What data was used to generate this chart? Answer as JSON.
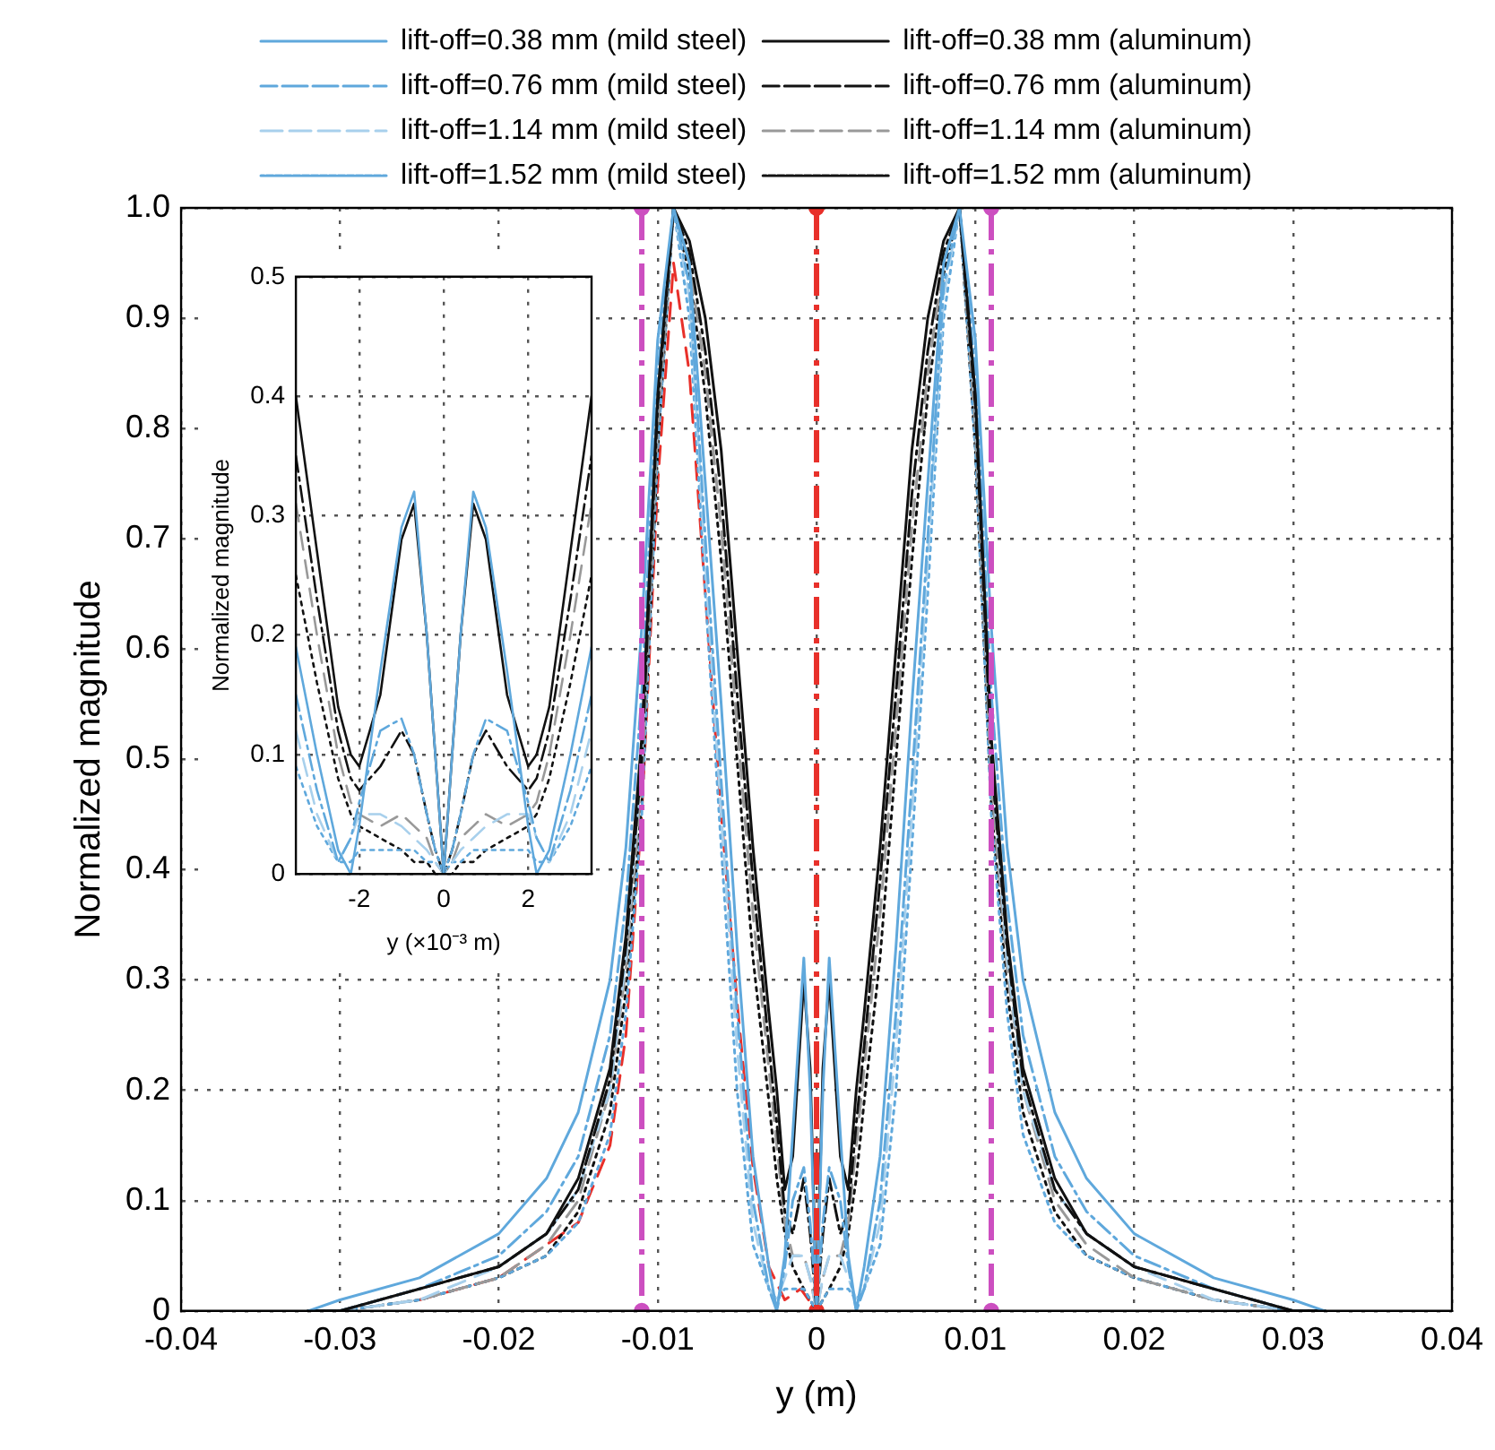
{
  "chart_data": [
    {
      "type": "line",
      "xlabel": "y (m)",
      "ylabel": "Normalized magnitude",
      "legend": "top",
      "grid": true,
      "marker": "none",
      "xlim": [
        -0.04,
        0.04
      ],
      "xticks": [
        -0.04,
        -0.03,
        -0.02,
        -0.01,
        0,
        0.01,
        0.02,
        0.03,
        0.04
      ],
      "ylim": [
        0,
        1
      ],
      "yticks": [
        0,
        0.1,
        0.2,
        0.3,
        0.4,
        0.5,
        0.6,
        0.7,
        0.8,
        0.9,
        {
          "value": 1,
          "label": "1.0"
        }
      ],
      "x": [
        -0.032,
        -0.03,
        -0.025,
        -0.02,
        -0.017,
        -0.015,
        -0.013,
        -0.012,
        -0.011,
        -0.01,
        -0.009,
        -0.008,
        -0.007,
        -0.006,
        -0.005,
        -0.004,
        -0.003,
        -0.0025,
        -0.002,
        -0.0015,
        -0.0008,
        -0.0004,
        0,
        0.0004,
        0.0008,
        0.0015,
        0.002,
        0.0025,
        0.003,
        0.004,
        0.005,
        0.006,
        0.007,
        0.008,
        0.009,
        0.01,
        0.011,
        0.012,
        0.013,
        0.015,
        0.017,
        0.02,
        0.025,
        0.03,
        0.032
      ],
      "series": [
        {
          "name": "lift-off=0.38 mm (mild steel)",
          "color": "#5fa8dc",
          "line_style": "solid",
          "values": [
            0,
            0.01,
            0.03,
            0.07,
            0.12,
            0.18,
            0.3,
            0.42,
            0.62,
            0.88,
            1,
            0.95,
            0.75,
            0.55,
            0.33,
            0.14,
            0.04,
            0,
            0.05,
            0.16,
            0.32,
            0.2,
            0,
            0.2,
            0.32,
            0.16,
            0.05,
            0,
            0.04,
            0.14,
            0.33,
            0.55,
            0.75,
            0.95,
            1,
            0.88,
            0.62,
            0.42,
            0.3,
            0.18,
            0.12,
            0.07,
            0.03,
            0.01,
            0
          ]
        },
        {
          "name": "lift-off=0.38 mm (aluminum)",
          "color": "#111111",
          "line_style": "solid",
          "values": [
            0,
            0,
            0.02,
            0.04,
            0.07,
            0.12,
            0.22,
            0.34,
            0.52,
            0.83,
            1,
            0.97,
            0.9,
            0.78,
            0.6,
            0.42,
            0.27,
            0.2,
            0.11,
            0.14,
            0.3,
            0.22,
            0,
            0.22,
            0.3,
            0.14,
            0.11,
            0.2,
            0.27,
            0.42,
            0.6,
            0.78,
            0.9,
            0.97,
            1,
            0.83,
            0.52,
            0.34,
            0.22,
            0.12,
            0.07,
            0.04,
            0.02,
            0,
            0
          ]
        },
        {
          "name": "lift-off=0.76 mm (mild steel)",
          "color": "#5fa8dc",
          "line_style": "dashdot",
          "values": [
            0,
            0,
            0.02,
            0.05,
            0.09,
            0.14,
            0.25,
            0.37,
            0.56,
            0.85,
            1,
            0.93,
            0.7,
            0.48,
            0.27,
            0.1,
            0.02,
            0,
            0.04,
            0.1,
            0.13,
            0.08,
            0,
            0.08,
            0.13,
            0.1,
            0.04,
            0,
            0.02,
            0.1,
            0.27,
            0.48,
            0.7,
            0.93,
            1,
            0.85,
            0.56,
            0.37,
            0.25,
            0.14,
            0.09,
            0.05,
            0.02,
            0,
            0
          ]
        },
        {
          "name": "lift-off=0.76 mm (aluminum)",
          "color": "#111111",
          "line_style": "dashdot",
          "values": [
            0,
            0,
            0.02,
            0.04,
            0.07,
            0.11,
            0.21,
            0.33,
            0.5,
            0.82,
            1,
            0.96,
            0.87,
            0.74,
            0.56,
            0.39,
            0.24,
            0.17,
            0.09,
            0.07,
            0.12,
            0.07,
            0,
            0.07,
            0.12,
            0.07,
            0.09,
            0.17,
            0.24,
            0.39,
            0.56,
            0.74,
            0.87,
            0.96,
            1,
            0.82,
            0.5,
            0.33,
            0.21,
            0.11,
            0.07,
            0.04,
            0.02,
            0,
            0
          ]
        },
        {
          "name": "lift-off=1.14 mm (mild steel)",
          "color": "#a8d0ec",
          "line_style": "dashed",
          "values": [
            0,
            0,
            0.01,
            0.04,
            0.07,
            0.11,
            0.2,
            0.32,
            0.5,
            0.82,
            1,
            0.92,
            0.68,
            0.45,
            0.24,
            0.08,
            0.02,
            0.01,
            0.03,
            0.05,
            0.05,
            0.03,
            0,
            0.03,
            0.05,
            0.05,
            0.03,
            0.01,
            0.02,
            0.08,
            0.24,
            0.45,
            0.68,
            0.92,
            1,
            0.82,
            0.5,
            0.32,
            0.2,
            0.11,
            0.07,
            0.04,
            0.01,
            0,
            0
          ]
        },
        {
          "name": "lift-off=1.14 mm (aluminum)",
          "color": "#999999",
          "line_style": "dashed",
          "values": [
            0,
            0,
            0.01,
            0.03,
            0.06,
            0.1,
            0.2,
            0.31,
            0.48,
            0.8,
            1,
            0.95,
            0.85,
            0.71,
            0.53,
            0.36,
            0.22,
            0.15,
            0.08,
            0.05,
            0.05,
            0.03,
            0,
            0.03,
            0.05,
            0.05,
            0.08,
            0.15,
            0.22,
            0.36,
            0.53,
            0.71,
            0.85,
            0.95,
            1,
            0.8,
            0.48,
            0.31,
            0.2,
            0.1,
            0.06,
            0.03,
            0.01,
            0,
            0
          ]
        },
        {
          "name": "lift-off=1.52 mm (mild steel)",
          "color": "#5fa8dc",
          "line_style": "dotted",
          "values": [
            0,
            0,
            0.01,
            0.03,
            0.05,
            0.08,
            0.16,
            0.27,
            0.45,
            0.78,
            1,
            0.9,
            0.65,
            0.42,
            0.2,
            0.06,
            0.02,
            0.01,
            0.02,
            0.02,
            0.02,
            0.01,
            0,
            0.01,
            0.02,
            0.02,
            0.02,
            0.01,
            0.02,
            0.06,
            0.2,
            0.42,
            0.65,
            0.9,
            1,
            0.78,
            0.45,
            0.27,
            0.16,
            0.08,
            0.05,
            0.03,
            0.01,
            0,
            0
          ]
        },
        {
          "name": "lift-off=1.52 mm (aluminum)",
          "color": "#111111",
          "line_style": "dotted",
          "values": [
            0,
            0,
            0.01,
            0.03,
            0.05,
            0.09,
            0.18,
            0.29,
            0.46,
            0.78,
            1,
            0.94,
            0.83,
            0.68,
            0.5,
            0.32,
            0.19,
            0.12,
            0.07,
            0.04,
            0.02,
            0.01,
            0,
            0.01,
            0.02,
            0.04,
            0.07,
            0.12,
            0.19,
            0.32,
            0.5,
            0.68,
            0.83,
            0.94,
            1,
            0.78,
            0.46,
            0.29,
            0.18,
            0.09,
            0.05,
            0.03,
            0.01,
            0,
            0
          ]
        },
        {
          "color": "#e8302a",
          "line_style": "dashed",
          "x": [
            -0.025,
            -0.02,
            -0.015,
            -0.013,
            -0.012,
            -0.011,
            -0.01,
            -0.009,
            -0.008,
            -0.007,
            -0.006,
            -0.005,
            -0.004,
            -0.003,
            -0.002,
            -0.001,
            0
          ],
          "values": [
            0.01,
            0.03,
            0.08,
            0.15,
            0.25,
            0.45,
            0.75,
            0.95,
            0.85,
            0.65,
            0.45,
            0.28,
            0.13,
            0.04,
            0.01,
            0.02,
            0
          ]
        },
        {
          "type": "scatter",
          "marker": "circle",
          "color": "#cc4fc0",
          "x": [
            -0.011,
            -0.011,
            0.011,
            0.011
          ],
          "values": [
            0,
            1,
            0,
            1
          ]
        },
        {
          "type": "scatter",
          "marker": "circle",
          "color": "#e8302a",
          "x": [
            0,
            0
          ],
          "values": [
            0,
            1
          ]
        }
      ],
      "ref_lines": [
        {
          "axis": "x",
          "value": -0.011,
          "color": "#cc4fc0",
          "line_style": "dashed"
        },
        {
          "axis": "x",
          "value": 0,
          "color": "#e8302a",
          "line_style": "dashed"
        },
        {
          "axis": "x",
          "value": 0.011,
          "color": "#cc4fc0",
          "line_style": "dashed"
        }
      ]
    },
    {
      "type": "line",
      "xlabel": "y (×10⁻³ m)",
      "ylabel": "Normalized magnitude",
      "grid": true,
      "marker": "none",
      "xlim": [
        -3.5,
        3.5
      ],
      "xticks": [
        -2,
        0,
        2
      ],
      "ylim": [
        0,
        0.5
      ],
      "yticks": [
        0,
        0.1,
        0.2,
        0.3,
        0.4,
        0.5
      ],
      "x": [
        -3.5,
        -3,
        -2.5,
        -2.2,
        -2,
        -1.5,
        -1,
        -0.7,
        -0.4,
        -0.2,
        0,
        0.2,
        0.4,
        0.7,
        1,
        1.5,
        2,
        2.2,
        2.5,
        3,
        3.5
      ],
      "series": [
        {
          "color": "#5fa8dc",
          "line_style": "solid",
          "values": [
            0.19,
            0.1,
            0.02,
            0,
            0.04,
            0.17,
            0.29,
            0.32,
            0.2,
            0.1,
            0,
            0.1,
            0.2,
            0.32,
            0.29,
            0.17,
            0.04,
            0,
            0.02,
            0.1,
            0.19
          ]
        },
        {
          "color": "#111111",
          "line_style": "solid",
          "values": [
            0.4,
            0.27,
            0.14,
            0.1,
            0.09,
            0.15,
            0.28,
            0.31,
            0.2,
            0.1,
            0,
            0.1,
            0.2,
            0.31,
            0.28,
            0.15,
            0.09,
            0.1,
            0.14,
            0.27,
            0.4
          ]
        },
        {
          "color": "#5fa8dc",
          "line_style": "dashdot",
          "values": [
            0.15,
            0.07,
            0.01,
            0.03,
            0.06,
            0.12,
            0.13,
            0.1,
            0.05,
            0.02,
            0,
            0.02,
            0.05,
            0.1,
            0.13,
            0.12,
            0.06,
            0.03,
            0.01,
            0.07,
            0.15
          ]
        },
        {
          "color": "#111111",
          "line_style": "dashdot",
          "values": [
            0.35,
            0.23,
            0.12,
            0.08,
            0.07,
            0.09,
            0.12,
            0.1,
            0.05,
            0.02,
            0,
            0.02,
            0.05,
            0.1,
            0.12,
            0.09,
            0.07,
            0.08,
            0.12,
            0.23,
            0.35
          ]
        },
        {
          "color": "#a8d0ec",
          "line_style": "dashed",
          "values": [
            0.12,
            0.05,
            0.01,
            0.03,
            0.05,
            0.05,
            0.04,
            0.03,
            0.02,
            0.01,
            0,
            0.01,
            0.02,
            0.03,
            0.04,
            0.05,
            0.05,
            0.03,
            0.01,
            0.05,
            0.12
          ]
        },
        {
          "color": "#999999",
          "line_style": "dashed",
          "values": [
            0.31,
            0.2,
            0.1,
            0.06,
            0.05,
            0.04,
            0.05,
            0.04,
            0.03,
            0.01,
            0,
            0.01,
            0.03,
            0.04,
            0.05,
            0.04,
            0.05,
            0.06,
            0.1,
            0.2,
            0.31
          ]
        },
        {
          "color": "#5fa8dc",
          "line_style": "dotted",
          "values": [
            0.09,
            0.04,
            0.01,
            0.01,
            0.02,
            0.02,
            0.02,
            0.02,
            0.01,
            0.01,
            0,
            0.01,
            0.01,
            0.02,
            0.02,
            0.02,
            0.02,
            0.01,
            0.01,
            0.04,
            0.09
          ]
        },
        {
          "color": "#111111",
          "line_style": "dotted",
          "values": [
            0.25,
            0.16,
            0.08,
            0.05,
            0.04,
            0.03,
            0.02,
            0.01,
            0.01,
            0,
            0,
            0,
            0.01,
            0.01,
            0.02,
            0.03,
            0.04,
            0.05,
            0.08,
            0.16,
            0.25
          ]
        }
      ]
    }
  ]
}
